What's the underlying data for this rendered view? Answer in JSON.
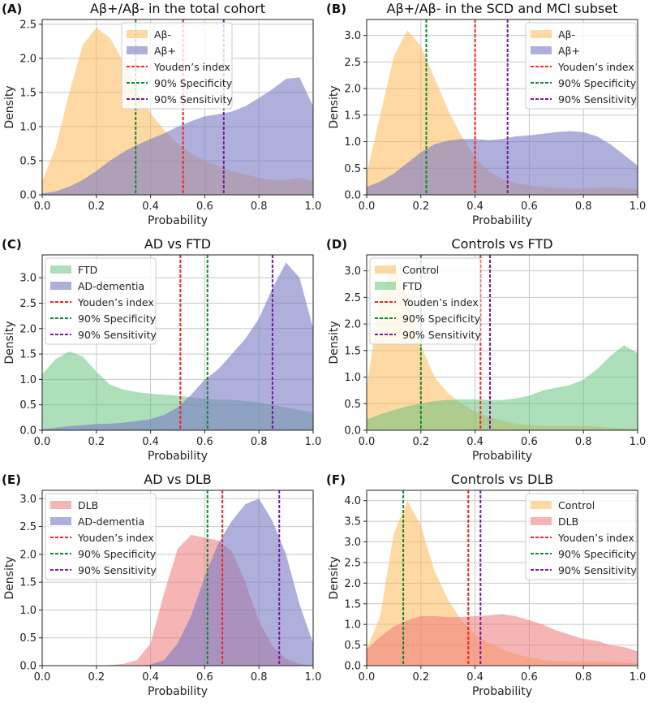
{
  "colors": {
    "orange": "#fdb95a",
    "purple": "#7a7ac4",
    "green": "#5cbf78",
    "pink": "#ef7878",
    "youden": "#ff2020",
    "specificity": "#108a30",
    "sensitivity": "#7a1a9a"
  },
  "chart_data": [
    {
      "type": "area",
      "panel": "(A)",
      "title": "Aβ+/Aβ- in the total cohort",
      "xlabel": "Probability",
      "ylabel": "Density",
      "xlim": [
        0,
        1
      ],
      "ylim": [
        0,
        2.57
      ],
      "xticks": [
        "0.0",
        "0.2",
        "0.4",
        "0.6",
        "0.8",
        "1.0"
      ],
      "yticks": [
        "0.0",
        "0.5",
        "1.0",
        "1.5",
        "2.0",
        "2.5"
      ],
      "x_step": 0.05,
      "legend": "top-center",
      "series": [
        {
          "name": "Aβ-",
          "color": "orange",
          "values": [
            0.2,
            0.7,
            1.5,
            2.2,
            2.45,
            2.3,
            1.95,
            1.55,
            1.2,
            0.95,
            0.75,
            0.6,
            0.5,
            0.42,
            0.35,
            0.3,
            0.25,
            0.22,
            0.22,
            0.25,
            0.2
          ]
        },
        {
          "name": "Aβ+",
          "color": "purple",
          "values": [
            0.02,
            0.05,
            0.12,
            0.22,
            0.35,
            0.5,
            0.63,
            0.73,
            0.82,
            0.9,
            1.0,
            1.08,
            1.15,
            1.18,
            1.22,
            1.3,
            1.42,
            1.55,
            1.7,
            1.72,
            1.3
          ]
        }
      ],
      "thresholds": [
        {
          "name": "Youden’s index",
          "color": "youden",
          "x": 0.52
        },
        {
          "name": "90% Specificity",
          "color": "specificity",
          "x": 0.345
        },
        {
          "name": "90% Sensitivity",
          "color": "sensitivity",
          "x": 0.67
        }
      ]
    },
    {
      "type": "area",
      "panel": "(B)",
      "title": "Aβ+/Aβ- in the SCD and MCI subset",
      "xlabel": "Probability",
      "ylabel": "Density",
      "xlim": [
        0,
        1
      ],
      "ylim": [
        0,
        3.3
      ],
      "xticks": [
        "0.0",
        "0.2",
        "0.4",
        "0.6",
        "0.8",
        "1.0"
      ],
      "yticks": [
        "0.0",
        "0.5",
        "1.0",
        "1.5",
        "2.0",
        "2.5",
        "3.0"
      ],
      "x_step": 0.05,
      "legend": "top-right",
      "series": [
        {
          "name": "Aβ-",
          "color": "orange",
          "values": [
            0.4,
            1.5,
            2.6,
            3.1,
            2.8,
            2.2,
            1.6,
            1.1,
            0.7,
            0.45,
            0.3,
            0.22,
            0.18,
            0.15,
            0.13,
            0.12,
            0.12,
            0.13,
            0.14,
            0.13,
            0.1
          ]
        },
        {
          "name": "Aβ+",
          "color": "purple",
          "values": [
            0.15,
            0.25,
            0.4,
            0.6,
            0.8,
            0.95,
            1.02,
            1.05,
            1.05,
            1.03,
            1.05,
            1.1,
            1.12,
            1.15,
            1.18,
            1.2,
            1.18,
            1.1,
            0.95,
            0.75,
            0.55
          ]
        }
      ],
      "thresholds": [
        {
          "name": "Youden’s index",
          "color": "youden",
          "x": 0.4
        },
        {
          "name": "90% Specificity",
          "color": "specificity",
          "x": 0.22
        },
        {
          "name": "90% Sensitivity",
          "color": "sensitivity",
          "x": 0.52
        }
      ]
    },
    {
      "type": "area",
      "panel": "(C)",
      "title": "AD vs FTD",
      "xlabel": "Probability",
      "ylabel": "Density",
      "xlim": [
        0,
        1
      ],
      "ylim": [
        0,
        3.45
      ],
      "xticks": [
        "0.0",
        "0.2",
        "0.4",
        "0.6",
        "0.8",
        "1.0"
      ],
      "yticks": [
        "0.0",
        "0.5",
        "1.0",
        "1.5",
        "2.0",
        "2.5",
        "3.0"
      ],
      "x_step": 0.05,
      "legend": "top-left",
      "series": [
        {
          "name": "FTD",
          "color": "green",
          "values": [
            1.1,
            1.4,
            1.55,
            1.45,
            1.15,
            0.9,
            0.8,
            0.75,
            0.72,
            0.7,
            0.68,
            0.65,
            0.62,
            0.6,
            0.6,
            0.58,
            0.55,
            0.5,
            0.45,
            0.4,
            0.35
          ]
        },
        {
          "name": "AD-dementia",
          "color": "purple",
          "values": [
            0.02,
            0.05,
            0.08,
            0.1,
            0.12,
            0.13,
            0.15,
            0.18,
            0.22,
            0.3,
            0.45,
            0.7,
            1.0,
            1.2,
            1.5,
            1.8,
            2.2,
            2.8,
            3.3,
            3.0,
            2.0
          ]
        }
      ],
      "thresholds": [
        {
          "name": "Youden’s index",
          "color": "youden",
          "x": 0.51
        },
        {
          "name": "90% Specificity",
          "color": "specificity",
          "x": 0.61
        },
        {
          "name": "90% Sensitivity",
          "color": "sensitivity",
          "x": 0.85
        }
      ]
    },
    {
      "type": "area",
      "panel": "(D)",
      "title": "Controls vs FTD",
      "xlabel": "Probability",
      "ylabel": "Density",
      "xlim": [
        0,
        1
      ],
      "ylim": [
        0,
        3.3
      ],
      "xticks": [
        "0.0",
        "0.2",
        "0.4",
        "0.6",
        "0.8",
        "1.0"
      ],
      "yticks": [
        "0.0",
        "0.5",
        "1.0",
        "1.5",
        "2.0",
        "2.5",
        "3.0"
      ],
      "x_step": 0.05,
      "legend": "top-left",
      "series": [
        {
          "name": "Control",
          "color": "orange",
          "values": [
            0.8,
            2.5,
            3.15,
            2.5,
            1.6,
            1.0,
            0.7,
            0.5,
            0.35,
            0.25,
            0.18,
            0.12,
            0.1,
            0.08,
            0.08,
            0.08,
            0.08,
            0.07,
            0.05,
            0.04,
            0.03
          ]
        },
        {
          "name": "FTD",
          "color": "green",
          "values": [
            0.2,
            0.3,
            0.38,
            0.45,
            0.5,
            0.55,
            0.57,
            0.58,
            0.58,
            0.57,
            0.57,
            0.6,
            0.65,
            0.75,
            0.8,
            0.85,
            0.95,
            1.15,
            1.4,
            1.6,
            1.45
          ]
        }
      ],
      "thresholds": [
        {
          "name": "Youden’s index",
          "color": "youden",
          "x": 0.42
        },
        {
          "name": "90% Specificity",
          "color": "specificity",
          "x": 0.2
        },
        {
          "name": "90% Sensitivity",
          "color": "sensitivity",
          "x": 0.455
        }
      ]
    },
    {
      "type": "area",
      "panel": "(E)",
      "title": "AD vs DLB",
      "xlabel": "Probability",
      "ylabel": "Density",
      "xlim": [
        0,
        1
      ],
      "ylim": [
        0,
        3.15
      ],
      "xticks": [
        "0.0",
        "0.2",
        "0.4",
        "0.6",
        "0.8",
        "1.0"
      ],
      "yticks": [
        "0.0",
        "0.5",
        "1.0",
        "1.5",
        "2.0",
        "2.5",
        "3.0"
      ],
      "x_step": 0.05,
      "legend": "top-left",
      "series": [
        {
          "name": "DLB",
          "color": "pink",
          "values": [
            0,
            0,
            0,
            0,
            0,
            0.01,
            0.03,
            0.1,
            0.4,
            1.3,
            2.1,
            2.35,
            2.3,
            2.25,
            2.05,
            1.5,
            0.8,
            0.35,
            0.12,
            0.03,
            0
          ]
        },
        {
          "name": "AD-dementia",
          "color": "purple",
          "values": [
            0,
            0,
            0,
            0,
            0,
            0,
            0,
            0,
            0.02,
            0.1,
            0.4,
            0.9,
            1.6,
            2.2,
            2.6,
            2.9,
            3.0,
            2.6,
            2.0,
            1.1,
            0.4
          ]
        }
      ],
      "thresholds": [
        {
          "name": "Youden’s index",
          "color": "youden",
          "x": 0.665
        },
        {
          "name": "90% Specificity",
          "color": "specificity",
          "x": 0.61
        },
        {
          "name": "90% Sensitivity",
          "color": "sensitivity",
          "x": 0.875
        }
      ]
    },
    {
      "type": "area",
      "panel": "(F)",
      "title": "Controls vs DLB",
      "xlabel": "Probability",
      "ylabel": "Density",
      "xlim": [
        0,
        1
      ],
      "ylim": [
        0,
        4.25
      ],
      "xticks": [
        "0.0",
        "0.2",
        "0.4",
        "0.6",
        "0.8",
        "1.0"
      ],
      "yticks": [
        "0.0",
        "0.5",
        "1.0",
        "1.5",
        "2.0",
        "2.5",
        "3.0",
        "3.5",
        "4.0"
      ],
      "x_step": 0.05,
      "legend": "top-right",
      "series": [
        {
          "name": "Control",
          "color": "orange",
          "values": [
            0.4,
            1.2,
            3.2,
            4.0,
            3.4,
            2.3,
            1.6,
            1.1,
            0.75,
            0.55,
            0.4,
            0.28,
            0.2,
            0.14,
            0.11,
            0.1,
            0.1,
            0.1,
            0.1,
            0.08,
            0.05
          ]
        },
        {
          "name": "DLB",
          "color": "pink",
          "values": [
            0.4,
            0.7,
            0.95,
            1.1,
            1.2,
            1.2,
            1.18,
            1.18,
            1.2,
            1.22,
            1.25,
            1.2,
            1.1,
            1.0,
            0.85,
            0.75,
            0.65,
            0.6,
            0.5,
            0.45,
            0.35
          ]
        }
      ],
      "thresholds": [
        {
          "name": "Youden’s index",
          "color": "youden",
          "x": 0.375
        },
        {
          "name": "90% Specificity",
          "color": "specificity",
          "x": 0.135
        },
        {
          "name": "90% Sensitivity",
          "color": "sensitivity",
          "x": 0.42
        }
      ]
    }
  ]
}
